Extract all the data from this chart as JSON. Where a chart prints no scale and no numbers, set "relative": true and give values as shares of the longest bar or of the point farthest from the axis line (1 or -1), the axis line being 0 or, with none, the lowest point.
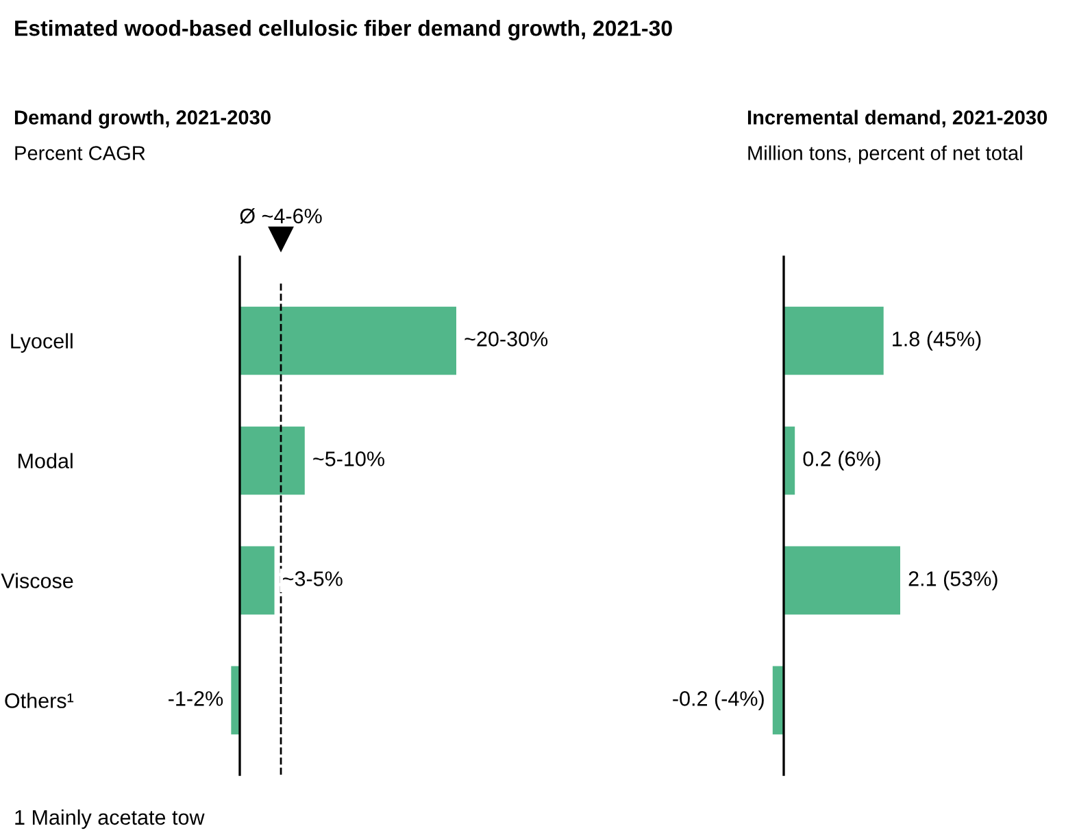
{
  "chart_data": [
    {
      "type": "bar",
      "orientation": "horizontal",
      "relative": true,
      "title": "Demand growth, 2021-2030",
      "subtitle": "Percent CAGR",
      "categories": [
        "Lyocell",
        "Modal",
        "Viscose",
        "Others¹"
      ],
      "values": [
        1,
        0.3,
        0.16,
        -0.04
      ],
      "color": "#52b78a",
      "ref_lines": [
        {
          "axis": "x",
          "value": 0.19,
          "label": "Ø ~4-6%",
          "line_style": "dashed",
          "color": "#000000"
        }
      ],
      "annotations": [
        "Estimated wood-based cellulosic fiber demand growth, 2021-30",
        "1 Mainly acetate tow",
        {
          "text": "~20-30%",
          "x": 1,
          "y": "Lyocell"
        },
        {
          "text": "~5-10%",
          "x": 0.3,
          "y": "Modal"
        },
        {
          "text": "~3-5%",
          "x": 0.16,
          "y": "Viscose"
        },
        {
          "text": "-1-2%",
          "x": -0.04,
          "y": "Others¹"
        }
      ]
    },
    {
      "type": "bar",
      "orientation": "horizontal",
      "title": "Incremental demand, 2021-2030",
      "subtitle": "Million tons, percent of net total",
      "categories": [
        null,
        null,
        null,
        null
      ],
      "values": [
        1.8,
        0.2,
        2.1,
        -0.2
      ],
      "value_labels": [
        "1.8 (45%)",
        "0.2 (6%)",
        "2.1 (53%)",
        "-0.2 (-4%)"
      ],
      "color": "#52b78a"
    }
  ]
}
